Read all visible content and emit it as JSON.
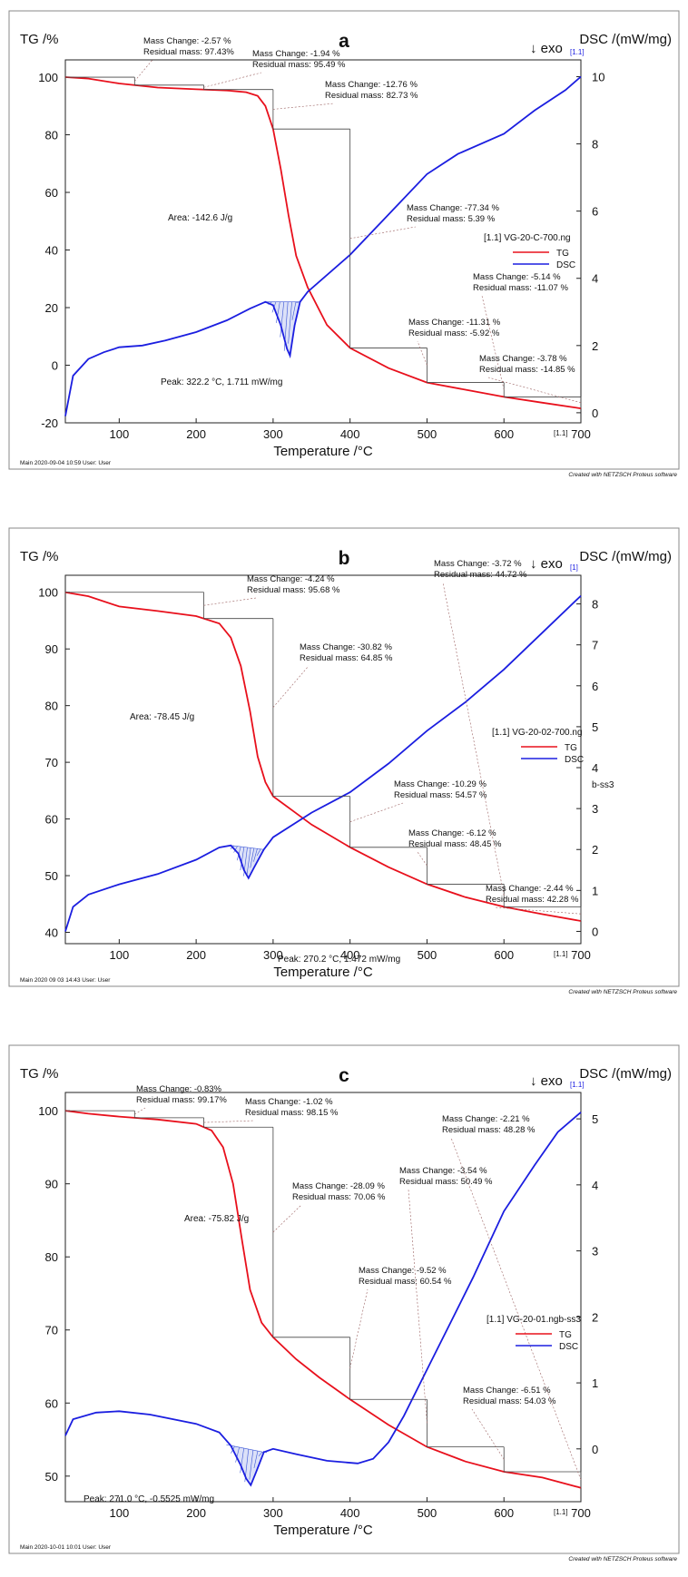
{
  "colors": {
    "tg": "#e8101c",
    "dsc": "#1b1ee0",
    "hatch": "#3b56d6",
    "annot_line": "#9a6060",
    "frame": "#888888"
  },
  "chart_data": [
    {
      "type": "line",
      "panel_label": "a",
      "ylabel_left": "TG /%",
      "ylabel_right": "DSC /(mW/mg)",
      "xlabel": "Temperature /°C",
      "exo_label": "↓ exo",
      "exo_marker": "[1.1]",
      "end_marker": "[1.1]",
      "footer_left": "Main   2020-09-04 10:59   User: User",
      "footer_right": "Created with NETZSCH Proteus software",
      "legend": {
        "title": "[1.1]  VG-20-C-700.ng",
        "tg": "TG",
        "dsc": "DSC"
      },
      "xlim": [
        30,
        700
      ],
      "xticks": [
        100,
        200,
        300,
        400,
        500,
        600,
        700
      ],
      "ylim_left": [
        -20,
        106
      ],
      "yticks_left": [
        -20,
        0,
        20,
        40,
        60,
        80,
        100
      ],
      "ylim_right": [
        -0.3,
        10.5
      ],
      "yticks_right": [
        0,
        2,
        4,
        6,
        8,
        10
      ],
      "tg": [
        [
          30,
          100
        ],
        [
          60,
          99.5
        ],
        [
          100,
          97.8
        ],
        [
          150,
          96.4
        ],
        [
          200,
          95.8
        ],
        [
          240,
          95.4
        ],
        [
          265,
          94.8
        ],
        [
          280,
          93.5
        ],
        [
          290,
          90
        ],
        [
          300,
          82
        ],
        [
          310,
          68
        ],
        [
          320,
          52
        ],
        [
          330,
          38
        ],
        [
          345,
          27
        ],
        [
          370,
          14
        ],
        [
          400,
          6
        ],
        [
          450,
          -1
        ],
        [
          500,
          -6
        ],
        [
          550,
          -8.5
        ],
        [
          600,
          -11
        ],
        [
          650,
          -13
        ],
        [
          700,
          -15
        ]
      ],
      "dsc": [
        [
          30,
          -0.1
        ],
        [
          40,
          1.1
        ],
        [
          60,
          1.6
        ],
        [
          80,
          1.8
        ],
        [
          100,
          1.95
        ],
        [
          130,
          2.0
        ],
        [
          160,
          2.15
        ],
        [
          200,
          2.4
        ],
        [
          240,
          2.75
        ],
        [
          270,
          3.1
        ],
        [
          290,
          3.3
        ],
        [
          300,
          3.2
        ],
        [
          310,
          2.6
        ],
        [
          318,
          1.9
        ],
        [
          322,
          1.7
        ],
        [
          328,
          2.6
        ],
        [
          335,
          3.3
        ],
        [
          345,
          3.6
        ],
        [
          400,
          4.7
        ],
        [
          450,
          5.9
        ],
        [
          500,
          7.1
        ],
        [
          540,
          7.7
        ],
        [
          600,
          8.3
        ],
        [
          640,
          9.0
        ],
        [
          680,
          9.6
        ],
        [
          700,
          10.0
        ]
      ],
      "peak_area": {
        "x_from": 288,
        "x_to": 340
      },
      "peak_label": "Peak: 322.2 °C, 1.711 mW/mg",
      "area_label": "Area: -142.6 J/g",
      "steps": [
        {
          "label": "Mass Change:   -2.57 %",
          "label2": "Residual mass:  97.43%"
        },
        {
          "label": "Mass Change:   -1.94 %",
          "label2": "Residual mass:  95.49 %"
        },
        {
          "label": "Mass Change:   -12.76 %",
          "label2": "Residual mass:  82.73 %"
        },
        {
          "label": "Mass Change:   -77.34 %",
          "label2": "Residual mass:   5.39 %"
        },
        {
          "label": "Mass Change:   -11.31 %",
          "label2": "Residual mass:   -5.92 %"
        },
        {
          "label": "Mass Change:   -5.14 %",
          "label2": "Residual mass:  -11.07 %"
        },
        {
          "label": "Mass Change:   -3.78 %",
          "label2": "Residual mass:  -14.85 %"
        }
      ]
    },
    {
      "type": "line",
      "panel_label": "b",
      "ylabel_left": "TG /%",
      "ylabel_right": "DSC /(mW/mg)",
      "xlabel": "Temperature /°C",
      "exo_label": "↓ exo",
      "exo_marker": "[1]",
      "end_marker": "[1.1]",
      "side_label": "b-ss3",
      "footer_left": "Main   2020 09 03 14:43   User: User",
      "footer_right": "Created with NETZSCH Proteus software",
      "legend": {
        "title": "[1.1]  VG-20-02-700.ng",
        "tg": "TG",
        "dsc": "DSC"
      },
      "xlim": [
        30,
        700
      ],
      "xticks": [
        100,
        200,
        300,
        400,
        500,
        600,
        700
      ],
      "ylim_left": [
        38,
        103
      ],
      "yticks_left": [
        40,
        50,
        60,
        70,
        80,
        90,
        100
      ],
      "ylim_right": [
        -0.3,
        8.7
      ],
      "yticks_right": [
        0,
        1,
        2,
        3,
        4,
        5,
        6,
        7,
        8
      ],
      "tg": [
        [
          30,
          100
        ],
        [
          60,
          99.3
        ],
        [
          100,
          97.5
        ],
        [
          150,
          96.7
        ],
        [
          200,
          95.8
        ],
        [
          230,
          94.5
        ],
        [
          245,
          92
        ],
        [
          258,
          87
        ],
        [
          270,
          79
        ],
        [
          280,
          71
        ],
        [
          290,
          66.5
        ],
        [
          300,
          64
        ],
        [
          325,
          61.5
        ],
        [
          350,
          59
        ],
        [
          400,
          55
        ],
        [
          450,
          51.5
        ],
        [
          500,
          48.5
        ],
        [
          550,
          46.2
        ],
        [
          600,
          44.5
        ],
        [
          650,
          43.2
        ],
        [
          700,
          42
        ]
      ],
      "dsc": [
        [
          30,
          0
        ],
        [
          40,
          0.6
        ],
        [
          60,
          0.9
        ],
        [
          100,
          1.15
        ],
        [
          150,
          1.4
        ],
        [
          200,
          1.75
        ],
        [
          230,
          2.05
        ],
        [
          245,
          2.1
        ],
        [
          255,
          1.9
        ],
        [
          262,
          1.5
        ],
        [
          268,
          1.3
        ],
        [
          275,
          1.55
        ],
        [
          288,
          2.0
        ],
        [
          300,
          2.3
        ],
        [
          350,
          2.9
        ],
        [
          400,
          3.4
        ],
        [
          450,
          4.1
        ],
        [
          500,
          4.9
        ],
        [
          550,
          5.6
        ],
        [
          600,
          6.4
        ],
        [
          650,
          7.3
        ],
        [
          700,
          8.2
        ]
      ],
      "peak_area": {
        "x_from": 245,
        "x_to": 288
      },
      "peak_label": "Peak: 270.2 °C, 1.472 mW/mg",
      "area_label": "Area: -78.45 J/g",
      "steps": [
        {
          "label": "Mass Change:   -4.24 %",
          "label2": "Residual mass:  95.68 %"
        },
        {
          "label": "Mass Change:   -30.82 %",
          "label2": "Residual mass:  64.85 %"
        },
        {
          "label": "Mass Change:   -10.29 %",
          "label2": "Residual mass:  54.57 %"
        },
        {
          "label": "Mass Change:   -6.12 %",
          "label2": "Residual mass:  48.45 %"
        },
        {
          "label": "Mass Change:   -3.72 %",
          "label2": "Residual mass:  44.72 %"
        },
        {
          "label": "Mass Change:   -2.44 %",
          "label2": "Residual mass:  42.28 %"
        }
      ]
    },
    {
      "type": "line",
      "panel_label": "c",
      "ylabel_left": "TG /%",
      "ylabel_right": "DSC /(mW/mg)",
      "xlabel": "Temperature /°C",
      "exo_label": "↓ exo",
      "exo_marker": "[1.1]",
      "end_marker": "[1.1]",
      "footer_left": "Main   2020-10-01 10:01   User: User",
      "footer_right": "Created with NETZSCH Proteus software",
      "legend": {
        "title": "[1.1]  VG-20-01.ngb-ss3",
        "tg": "TG",
        "dsc": "DSC"
      },
      "xlim": [
        30,
        700
      ],
      "xticks": [
        100,
        200,
        300,
        400,
        500,
        600,
        700
      ],
      "ylim_left": [
        46.5,
        102.5
      ],
      "yticks_left": [
        50,
        60,
        70,
        80,
        90,
        100
      ],
      "ylim_right": [
        -0.8,
        5.4
      ],
      "yticks_right": [
        0,
        1,
        2,
        3,
        4,
        5
      ],
      "tg": [
        [
          30,
          100
        ],
        [
          60,
          99.6
        ],
        [
          100,
          99.2
        ],
        [
          150,
          98.8
        ],
        [
          200,
          98.2
        ],
        [
          220,
          97.3
        ],
        [
          235,
          95
        ],
        [
          248,
          90
        ],
        [
          260,
          82
        ],
        [
          270,
          75.5
        ],
        [
          285,
          71
        ],
        [
          300,
          69
        ],
        [
          330,
          66
        ],
        [
          360,
          63.5
        ],
        [
          400,
          60.5
        ],
        [
          450,
          57
        ],
        [
          500,
          54
        ],
        [
          550,
          52
        ],
        [
          600,
          50.6
        ],
        [
          650,
          49.8
        ],
        [
          700,
          48.4
        ]
      ],
      "dsc": [
        [
          30,
          0.2
        ],
        [
          40,
          0.45
        ],
        [
          70,
          0.55
        ],
        [
          100,
          0.57
        ],
        [
          140,
          0.52
        ],
        [
          200,
          0.38
        ],
        [
          230,
          0.25
        ],
        [
          245,
          0.05
        ],
        [
          258,
          -0.25
        ],
        [
          265,
          -0.45
        ],
        [
          271,
          -0.55
        ],
        [
          278,
          -0.35
        ],
        [
          288,
          -0.05
        ],
        [
          300,
          0.0
        ],
        [
          330,
          -0.08
        ],
        [
          370,
          -0.18
        ],
        [
          410,
          -0.22
        ],
        [
          430,
          -0.15
        ],
        [
          450,
          0.1
        ],
        [
          470,
          0.5
        ],
        [
          500,
          1.2
        ],
        [
          530,
          1.9
        ],
        [
          560,
          2.6
        ],
        [
          600,
          3.6
        ],
        [
          640,
          4.3
        ],
        [
          670,
          4.8
        ],
        [
          700,
          5.1
        ]
      ],
      "peak_area": {
        "x_from": 238,
        "x_to": 298
      },
      "peak_label": "Peak: 271.0 °C, -0.5525 mW/mg",
      "area_label": "Area: -75.82 J/g",
      "steps": [
        {
          "label": "Mass Change:   -0.83%",
          "label2": "Residual mass:  99.17%"
        },
        {
          "label": "Mass Change:   -1.02 %",
          "label2": "Residual mass:  98.15 %"
        },
        {
          "label": "Mass Change:   -28.09 %",
          "label2": "Residual mass:  70.06 %"
        },
        {
          "label": "Mass Change:   -9.52 %",
          "label2": "Residual mass:  60.54 %"
        },
        {
          "label": "Mass Change:   -3.54 %",
          "label2": "Residual mass:  50.49 %"
        },
        {
          "label": "Mass Change:   -6.51 %",
          "label2": "Residual mass:  54.03 %"
        },
        {
          "label": "Mass Change:   -2.21 %",
          "label2": "Residual mass:  48.28 %"
        }
      ]
    }
  ]
}
